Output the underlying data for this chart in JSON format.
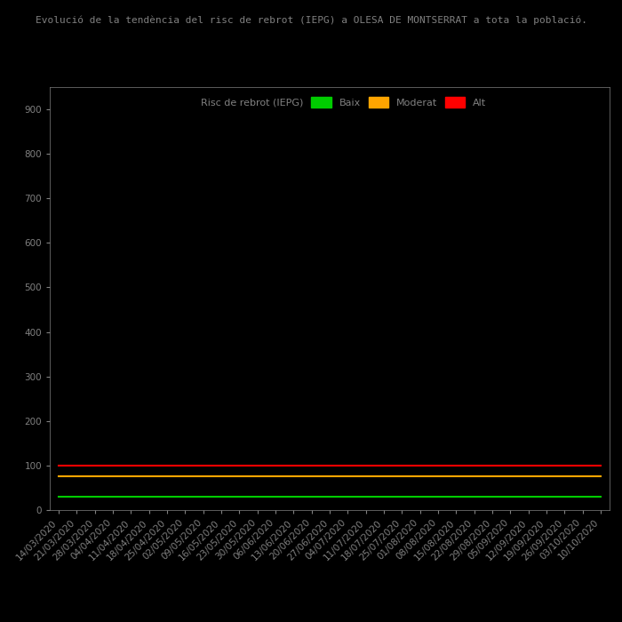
{
  "title": "Evolució de la tendència del risc de rebrot (IEPG) a OLESA DE MONTSERRAT a tota la població.",
  "background_color": "#000000",
  "text_color": "#808080",
  "ylim": [
    0,
    950
  ],
  "yticks": [
    0,
    100,
    200,
    300,
    400,
    500,
    600,
    700,
    800,
    900
  ],
  "line_red_color": "#ff0000",
  "line_orange_color": "#ffa500",
  "line_green_color": "#00cc00",
  "legend_label_line": "Risc de rebrot (IEPG)",
  "legend_label_green": "Baix",
  "legend_label_orange": "Moderat",
  "legend_label_red": "Alt",
  "title_fontsize": 8,
  "legend_fontsize": 8,
  "tick_fontsize": 7.5,
  "dates": [
    "14/03/2020",
    "21/03/2020",
    "28/03/2020",
    "04/04/2020",
    "11/04/2020",
    "18/04/2020",
    "25/04/2020",
    "02/05/2020",
    "09/05/2020",
    "16/05/2020",
    "23/05/2020",
    "30/05/2020",
    "06/06/2020",
    "13/06/2020",
    "20/06/2020",
    "27/06/2020",
    "04/07/2020",
    "11/07/2020",
    "18/07/2020",
    "25/07/2020",
    "01/08/2020",
    "08/08/2020",
    "15/08/2020",
    "22/08/2020",
    "29/08/2020",
    "05/09/2020",
    "12/09/2020",
    "19/09/2020",
    "26/09/2020",
    "03/10/2020",
    "10/10/2020"
  ],
  "values_red": [
    100,
    100,
    100,
    100,
    100,
    100,
    100,
    100,
    100,
    100,
    100,
    100,
    100,
    100,
    100,
    100,
    100,
    100,
    100,
    100,
    100,
    100,
    100,
    100,
    100,
    100,
    100,
    100,
    100,
    100,
    100
  ],
  "values_orange": [
    75,
    75,
    75,
    75,
    75,
    75,
    75,
    75,
    75,
    75,
    75,
    75,
    75,
    75,
    75,
    75,
    75,
    75,
    75,
    75,
    75,
    75,
    75,
    75,
    75,
    75,
    75,
    75,
    75,
    75,
    75
  ],
  "values_green": [
    30,
    30,
    30,
    30,
    30,
    30,
    30,
    30,
    30,
    30,
    30,
    30,
    30,
    30,
    30,
    30,
    30,
    30,
    30,
    30,
    30,
    30,
    30,
    30,
    30,
    30,
    30,
    30,
    30,
    30,
    30
  ]
}
